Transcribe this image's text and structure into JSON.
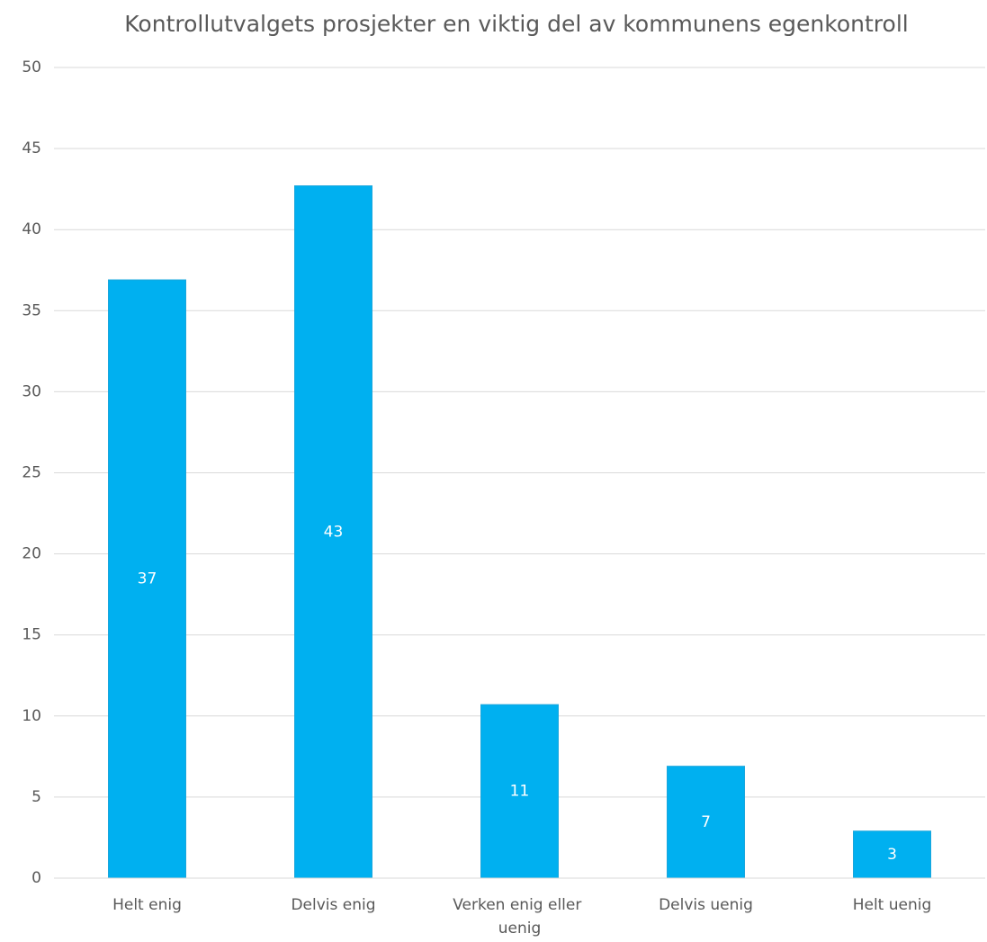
{
  "chart_data": {
    "type": "bar",
    "title": "Kontrollutvalgets prosjekter en viktig del av kommunens egenkontroll",
    "categories": [
      "Helt enig",
      "Delvis enig",
      "Verken enig eller uenig",
      "Delvis uenig",
      "Helt uenig"
    ],
    "values": [
      36.9,
      42.7,
      10.7,
      6.9,
      2.9
    ],
    "value_labels": [
      "37",
      "43",
      "11",
      "7",
      "3"
    ],
    "color": "#00b0f0",
    "ylim": [
      0,
      50
    ],
    "yticks": [
      0,
      5,
      10,
      15,
      20,
      25,
      30,
      35,
      40,
      45,
      50
    ],
    "grid": true
  }
}
